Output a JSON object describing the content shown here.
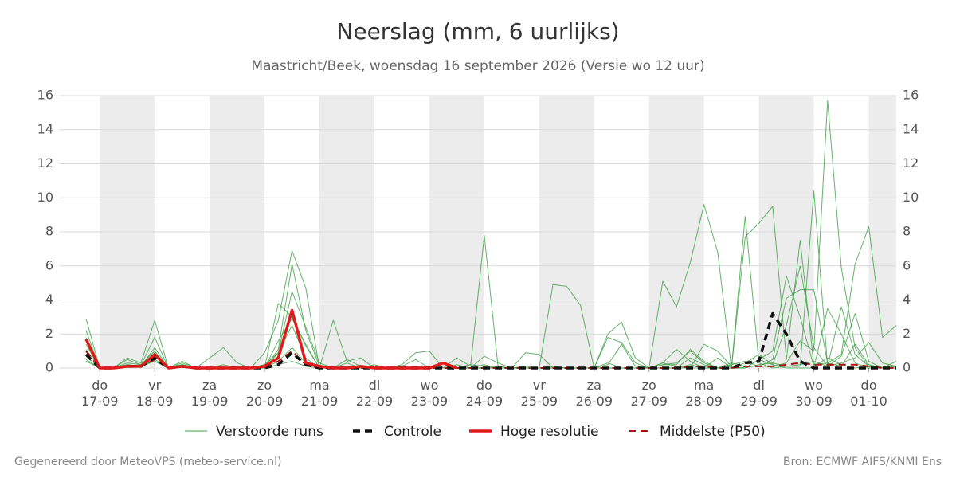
{
  "chart_data": {
    "type": "line",
    "title": "Neerslag (mm, 6 uurlijks)",
    "subtitle": "Maastricht/Beek, woensdag 16 september 2026 (Versie wo 12 uur)",
    "footer_left": "Gegenereerd door MeteoVPS (meteo-service.nl)",
    "footer_right": "Bron: ECMWF AIFS/KNMI Ens",
    "xlim": [
      0,
      59
    ],
    "xticks": [
      {
        "value": 1,
        "label": "do 17-09"
      },
      {
        "value": 5,
        "label": "vr 18-09"
      },
      {
        "value": 9,
        "label": "za 19-09"
      },
      {
        "value": 13,
        "label": "zo 20-09"
      },
      {
        "value": 17,
        "label": "ma 21-09"
      },
      {
        "value": 21,
        "label": "di 22-09"
      },
      {
        "value": 25,
        "label": "wo 23-09"
      },
      {
        "value": 29,
        "label": "do 24-09"
      },
      {
        "value": 33,
        "label": "vr 25-09"
      },
      {
        "value": 37,
        "label": "za 26-09"
      },
      {
        "value": 41,
        "label": "zo 27-09"
      },
      {
        "value": 45,
        "label": "ma 28-09"
      },
      {
        "value": 49,
        "label": "di 29-09"
      },
      {
        "value": 53,
        "label": "wo 30-09"
      },
      {
        "value": 57,
        "label": "do 01-10"
      }
    ],
    "ylim": [
      0,
      16
    ],
    "yticks": [
      0,
      2,
      4,
      6,
      8,
      10,
      12,
      14,
      16
    ],
    "grid": true,
    "ensemble": {
      "name": "Verstoorde runs",
      "color": "#3f9f45",
      "members": [
        [
          2.2,
          0,
          0,
          0.3,
          0.2,
          1.0,
          0,
          0.2,
          0,
          0,
          0,
          0.1,
          0,
          0.9,
          2.8,
          6.9,
          4.7,
          0,
          0,
          0.3,
          0,
          0.2,
          0,
          0.1,
          0.5,
          0,
          0.3,
          0,
          0.2,
          0.1,
          0,
          0,
          0.1,
          0,
          0,
          0,
          0,
          0,
          0.3,
          0,
          0,
          0,
          0.2,
          0.3,
          1.0,
          0.3,
          0,
          0.2,
          0.4,
          0.1,
          0.5,
          4.1,
          4.6,
          4.6,
          0.3,
          0.1,
          1.4,
          0.2,
          0,
          0.4
        ],
        [
          2.9,
          0,
          0,
          0.6,
          0.3,
          2.8,
          0,
          0.3,
          0,
          0,
          0.2,
          0,
          0,
          0,
          1.6,
          2.9,
          1.4,
          0,
          2.8,
          0.4,
          0.6,
          0,
          0,
          0.2,
          0.9,
          1.0,
          0,
          0.2,
          0,
          0.7,
          0.3,
          0,
          0.9,
          0.8,
          0,
          0,
          0,
          0,
          0,
          0,
          0,
          0,
          0.3,
          1.1,
          0.4,
          0,
          0,
          0,
          0.3,
          0.8,
          0.2,
          2.5,
          6.0,
          1.2,
          0.1,
          0.7,
          3.2,
          0.4,
          0,
          0.1
        ],
        [
          0.5,
          0,
          0,
          0.2,
          0.1,
          0.4,
          0,
          0.1,
          0,
          0.6,
          1.2,
          0.3,
          0,
          0,
          0.4,
          1.2,
          0.3,
          0,
          0,
          0.5,
          0.1,
          0,
          0,
          0.1,
          0,
          0.1,
          0,
          0.6,
          0.1,
          7.8,
          0.1,
          0,
          0,
          0,
          0.1,
          0,
          0,
          0,
          0.2,
          1.4,
          0.1,
          0,
          0.3,
          0.1,
          0,
          1.4,
          1.0,
          0.1,
          0,
          0.2,
          0.3,
          0.1,
          0.2,
          0.4,
          0.1,
          3.6,
          0.8,
          0.1,
          0.1,
          0.1
        ],
        [
          1.1,
          0,
          0,
          0.2,
          0.1,
          0.5,
          0,
          0.2,
          0,
          0,
          0,
          0,
          0,
          0.2,
          0.9,
          2.5,
          0.6,
          0,
          0,
          0,
          0,
          0,
          0,
          0,
          0.1,
          0,
          0,
          0,
          0,
          0.2,
          0,
          0,
          0,
          0,
          4.9,
          4.8,
          3.7,
          0,
          2.0,
          2.7,
          0.6,
          0,
          0,
          0,
          0.6,
          0.2,
          0,
          0,
          0,
          0.5,
          1.0,
          5.4,
          3.0,
          0.1,
          0.6,
          0.2,
          0,
          0.1,
          0,
          0
        ],
        [
          0.7,
          0,
          0,
          0.5,
          0.2,
          1.8,
          0,
          0.4,
          0,
          0,
          0,
          0,
          0,
          0,
          3.8,
          3.0,
          1.3,
          0,
          0,
          0,
          0,
          0,
          0,
          0,
          0,
          0,
          0,
          0,
          0,
          0,
          0,
          0,
          0,
          0,
          0,
          0,
          0,
          0,
          1.8,
          1.5,
          0.3,
          0,
          5.1,
          3.6,
          6.2,
          9.6,
          6.8,
          0,
          0,
          0.5,
          0.2,
          0,
          0,
          0,
          3.5,
          2.0,
          0.3,
          0,
          0,
          0
        ],
        [
          0.4,
          0,
          0,
          0.1,
          0.2,
          0.4,
          0,
          0.1,
          0,
          0,
          0,
          0,
          0,
          0,
          0.2,
          0.4,
          0.1,
          0,
          0,
          0,
          0,
          0,
          0,
          0,
          0,
          0,
          0,
          0,
          0,
          0,
          0,
          0,
          0,
          0,
          0,
          0,
          0,
          0,
          0,
          0,
          0,
          0,
          0.2,
          0.2,
          1.1,
          0.4,
          0,
          0.3,
          0.1,
          0.1,
          0.1,
          0.3,
          1.6,
          1.0,
          15.7,
          5.9,
          1.2,
          0.1,
          0,
          0
        ],
        [
          1.4,
          0,
          0,
          0.2,
          0.1,
          1.2,
          0,
          0.2,
          0,
          0,
          0,
          0,
          0,
          0,
          0.9,
          4.5,
          2.4,
          0.3,
          0,
          0,
          0,
          0,
          0,
          0,
          0,
          0,
          0,
          0,
          0,
          0,
          0,
          0,
          0,
          0,
          0,
          0,
          0,
          0,
          0,
          0,
          0,
          0,
          0,
          0,
          0.2,
          0,
          0,
          0,
          8.9,
          0.3,
          0,
          0.1,
          0.1,
          10.4,
          0.1,
          0.3,
          0.6,
          1.5,
          0.3,
          0.1
        ],
        [
          1.8,
          0,
          0,
          0.2,
          0.1,
          0.9,
          0,
          0.2,
          0,
          0,
          0,
          0,
          0,
          0,
          1.1,
          6.1,
          2.2,
          0.1,
          0,
          0,
          0,
          0,
          0,
          0,
          0,
          0,
          0,
          0,
          0,
          0,
          0,
          0,
          0,
          0,
          0,
          0,
          0,
          0,
          0,
          0,
          0,
          0,
          0,
          0,
          0,
          0,
          0.6,
          0,
          7.7,
          8.5,
          9.5,
          0.5,
          7.5,
          0.2,
          0.3,
          0.8,
          6.1,
          8.3,
          1.8,
          2.5
        ]
      ]
    },
    "series": [
      {
        "name": "Controle",
        "color": "#111111",
        "dash": true,
        "values": [
          0.8,
          0,
          0,
          0.1,
          0.1,
          0.6,
          0,
          0.1,
          0,
          0,
          0,
          0,
          0,
          0,
          0.2,
          0.9,
          0.2,
          0,
          0,
          0,
          0,
          0,
          0,
          0,
          0,
          0,
          0,
          0,
          0,
          0,
          0,
          0,
          0,
          0,
          0,
          0,
          0,
          0,
          0,
          0,
          0,
          0,
          0,
          0,
          0,
          0,
          0,
          0,
          0.3,
          0.4,
          3.2,
          2.0,
          0.4,
          0,
          0,
          0,
          0,
          0,
          0,
          0
        ]
      },
      {
        "name": "Hoge resolutie",
        "color": "#e0191b",
        "dash": false,
        "values": [
          1.7,
          0,
          0,
          0.1,
          0.1,
          0.8,
          0,
          0.1,
          0,
          0,
          0,
          0,
          0,
          0.1,
          0.6,
          3.4,
          0.3,
          0.1,
          0,
          0,
          0.1,
          0,
          0,
          0,
          0,
          0,
          0.3,
          0,
          null,
          null,
          null,
          null,
          null,
          null,
          null,
          null,
          null,
          null,
          null,
          null,
          null,
          null,
          null,
          null,
          null,
          null,
          null,
          null,
          null,
          null,
          null,
          null,
          null,
          null,
          null,
          null,
          null,
          null,
          null,
          null
        ]
      },
      {
        "name": "Middelste (P50)",
        "color": "#a81212",
        "dash": true,
        "values": [
          1.0,
          0,
          0,
          0.1,
          0.1,
          0.5,
          0,
          0.1,
          0,
          0,
          0,
          0,
          0,
          0,
          0.4,
          1.0,
          0.2,
          0,
          0,
          0,
          0,
          0,
          0,
          0,
          0,
          0,
          0,
          0,
          0,
          0,
          0,
          0,
          0,
          0,
          0,
          0,
          0,
          0,
          0,
          0,
          0,
          0,
          0,
          0,
          0.1,
          0.1,
          0,
          0,
          0.1,
          0.1,
          0.1,
          0.2,
          0.3,
          0.2,
          0.2,
          0.2,
          0.2,
          0.1,
          0,
          0
        ]
      }
    ]
  }
}
